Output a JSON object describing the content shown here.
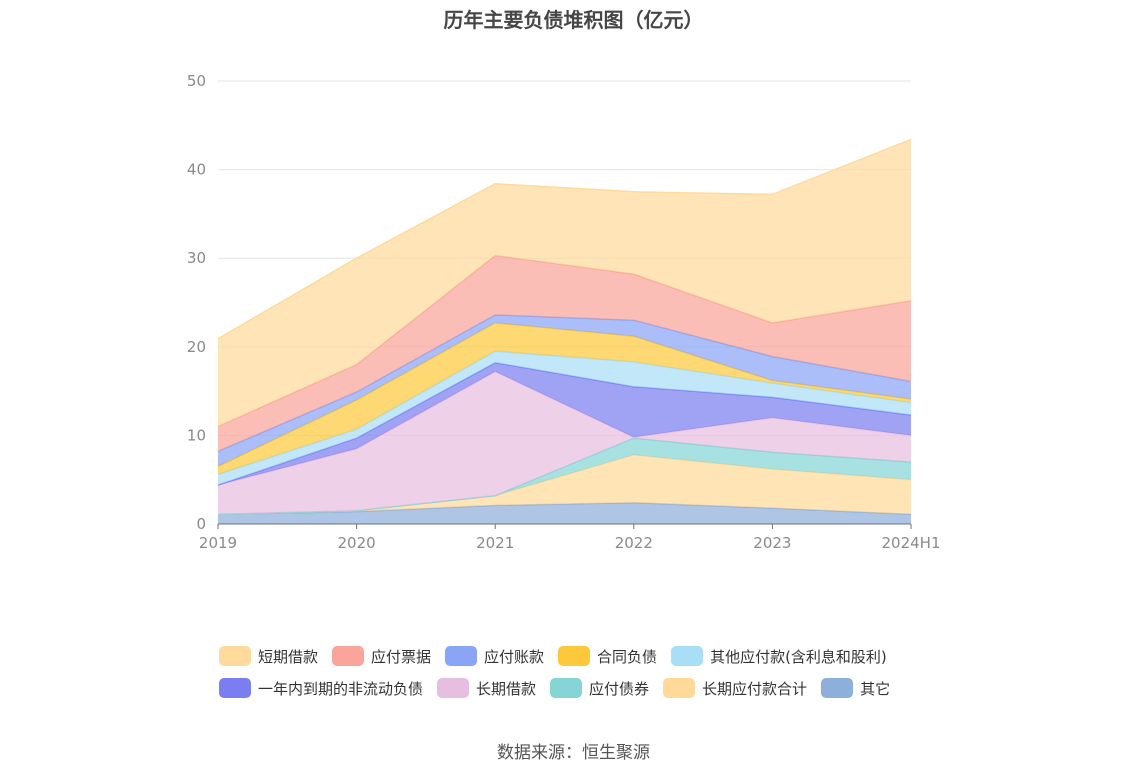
{
  "title": "历年主要负债堆积图（亿元）",
  "source": "数据来源：恒生聚源",
  "chart_data": {
    "type": "area",
    "stacked": true,
    "categories": [
      "2019",
      "2020",
      "2021",
      "2022",
      "2023",
      "2024H1"
    ],
    "ylim": [
      0,
      50
    ],
    "yticks": [
      "0",
      "10",
      "20",
      "30",
      "40",
      "50"
    ],
    "grid": true,
    "legend_position": "bottom",
    "series": [
      {
        "name": "其它",
        "color": "#8fafdb",
        "values": [
          1.1,
          1.4,
          2.1,
          2.4,
          1.8,
          1.1
        ]
      },
      {
        "name": "长期应付款合计",
        "color": "#ffd99a",
        "values": [
          0,
          0.1,
          1.1,
          5.4,
          4.4,
          3.9
        ]
      },
      {
        "name": "应付债券",
        "color": "#85d5d6",
        "values": [
          0,
          0,
          0,
          1.9,
          1.9,
          2.0
        ]
      },
      {
        "name": "长期借款",
        "color": "#e7bedf",
        "values": [
          3.3,
          7.0,
          14.0,
          0.1,
          3.9,
          3.0
        ]
      },
      {
        "name": "一年内到期的非流动负债",
        "color": "#7b7ef0",
        "values": [
          0,
          1.2,
          1.0,
          5.7,
          2.3,
          2.3
        ]
      },
      {
        "name": "其他应付款(含利息和股利)",
        "color": "#a9def7",
        "values": [
          1.2,
          1.0,
          1.3,
          2.8,
          1.6,
          1.4
        ]
      },
      {
        "name": "合同负债",
        "color": "#fcc93d",
        "values": [
          0.9,
          3.3,
          3.2,
          2.9,
          0.3,
          0.4
        ]
      },
      {
        "name": "应付账款",
        "color": "#8aa5f6",
        "values": [
          1.7,
          0.9,
          0.9,
          1.8,
          2.7,
          2.0
        ]
      },
      {
        "name": "应付票据",
        "color": "#f9a59b",
        "values": [
          2.8,
          3.1,
          6.7,
          5.2,
          3.8,
          9.1
        ]
      },
      {
        "name": "短期借款",
        "color": "#ffda9c",
        "values": [
          9.9,
          12.0,
          8.1,
          9.3,
          14.5,
          18.2
        ]
      }
    ]
  },
  "legend": [
    {
      "label": "短期借款",
      "color": "#ffda9c"
    },
    {
      "label": "应付票据",
      "color": "#f9a59b"
    },
    {
      "label": "应付账款",
      "color": "#8aa5f6"
    },
    {
      "label": "合同负债",
      "color": "#fcc93d"
    },
    {
      "label": "其他应付款(含利息和股利)",
      "color": "#a9def7"
    },
    {
      "label": "一年内到期的非流动负债",
      "color": "#7b7ef0"
    },
    {
      "label": "长期借款",
      "color": "#e7bedf"
    },
    {
      "label": "应付债券",
      "color": "#85d5d6"
    },
    {
      "label": "长期应付款合计",
      "color": "#ffd99a"
    },
    {
      "label": "其它",
      "color": "#8fafdb"
    }
  ]
}
